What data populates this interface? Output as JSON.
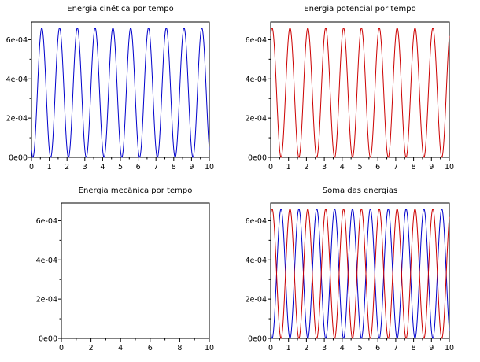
{
  "chart_data": [
    {
      "type": "line",
      "title": "Energia cinética por tempo",
      "xlim": [
        0,
        10
      ],
      "ylim": [
        0,
        0.00069
      ],
      "xticks": [
        0,
        1,
        2,
        3,
        4,
        5,
        6,
        7,
        8,
        9,
        10
      ],
      "xtick_labels": [
        "0",
        "1",
        "2",
        "3",
        "4",
        "5",
        "6",
        "7",
        "8",
        "9",
        "10"
      ],
      "yticks": [
        0,
        0.0002,
        0.0004,
        0.0006
      ],
      "ytick_labels": [
        "0e00",
        "2e-04",
        "4e-04",
        "6e-04"
      ],
      "grid": false,
      "series": [
        {
          "kind": "kinetic",
          "color": "#0000cc",
          "amplitude": 0.00066,
          "period": 2.0,
          "phase_offset": 0.08,
          "x_range": [
            0,
            10
          ]
        }
      ]
    },
    {
      "type": "line",
      "title": "Energia potencial por tempo",
      "xlim": [
        0,
        10
      ],
      "ylim": [
        0,
        0.00069
      ],
      "xticks": [
        0,
        1,
        2,
        3,
        4,
        5,
        6,
        7,
        8,
        9,
        10
      ],
      "xtick_labels": [
        "0",
        "1",
        "2",
        "3",
        "4",
        "5",
        "6",
        "7",
        "8",
        "9",
        "10"
      ],
      "yticks": [
        0,
        0.0002,
        0.0004,
        0.0006
      ],
      "ytick_labels": [
        "0e00",
        "2e-04",
        "4e-04",
        "6e-04"
      ],
      "grid": false,
      "series": [
        {
          "kind": "potential",
          "color": "#cc0000",
          "amplitude": 0.00066,
          "period": 2.0,
          "phase_offset": 0.08,
          "x_range": [
            0,
            10
          ]
        }
      ]
    },
    {
      "type": "line",
      "title": "Energia mecânica por tempo",
      "xlim": [
        0,
        10
      ],
      "ylim": [
        0,
        0.00069
      ],
      "xticks": [
        0,
        2,
        4,
        6,
        8,
        10
      ],
      "xtick_labels": [
        "0",
        "2",
        "4",
        "6",
        "8",
        "10"
      ],
      "yticks": [
        0,
        0.0002,
        0.0004,
        0.0006
      ],
      "ytick_labels": [
        "0e00",
        "2e-04",
        "4e-04",
        "6e-04"
      ],
      "grid": false,
      "series": [
        {
          "kind": "constant",
          "color": "#000000",
          "value": 0.00066,
          "x_range": [
            0,
            10
          ]
        }
      ]
    },
    {
      "type": "line",
      "title": "Soma das energias",
      "xlim": [
        0,
        10
      ],
      "ylim": [
        0,
        0.00069
      ],
      "xticks": [
        0,
        1,
        2,
        3,
        4,
        5,
        6,
        7,
        8,
        9,
        10
      ],
      "xtick_labels": [
        "0",
        "1",
        "2",
        "3",
        "4",
        "5",
        "6",
        "7",
        "8",
        "9",
        "10"
      ],
      "yticks": [
        0,
        0.0002,
        0.0004,
        0.0006
      ],
      "ytick_labels": [
        "0e00",
        "2e-04",
        "4e-04",
        "6e-04"
      ],
      "grid": false,
      "series": [
        {
          "kind": "kinetic",
          "color": "#0000cc",
          "amplitude": 0.00066,
          "period": 2.0,
          "phase_offset": 0.08,
          "x_range": [
            0,
            10
          ]
        },
        {
          "kind": "potential",
          "color": "#cc0000",
          "amplitude": 0.00066,
          "period": 2.0,
          "phase_offset": 0.08,
          "x_range": [
            0,
            10
          ]
        },
        {
          "kind": "constant",
          "color": "#000000",
          "value": 0.00066,
          "x_range": [
            0,
            10
          ]
        }
      ]
    }
  ]
}
